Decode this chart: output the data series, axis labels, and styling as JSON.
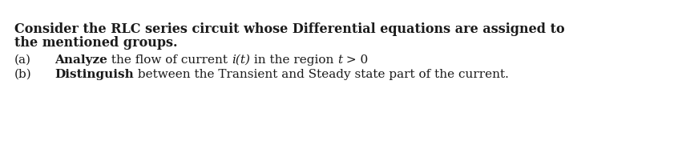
{
  "background_color": "#ffffff",
  "bold_line1": "Consider the RLC series circuit whose Differential equations are assigned to",
  "bold_line2": "the mentioned groups.",
  "label_a": "(a)",
  "label_b": "(b)",
  "item_a_bold": "Analyze",
  "item_a_mid": " the flow of current ",
  "item_a_italic": "i(t)",
  "item_a_region": " in the region ",
  "item_a_t": "t",
  "item_a_end": " > 0",
  "item_b_bold": "Distinguish",
  "item_b_rest": " between the Transient and Steady state part of the current.",
  "font_size_heading": 11.5,
  "font_size_body": 11,
  "text_color": "#1a1a1a"
}
